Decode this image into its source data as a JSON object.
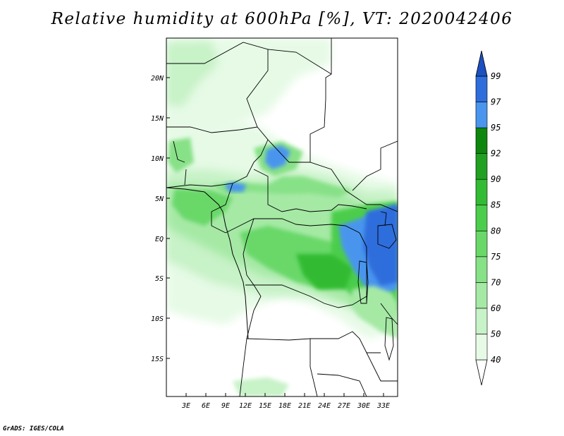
{
  "map": {
    "title": "Relative humidity at 600hPa [%], VT: 2020042406",
    "credit": "GrADS: IGES/COLA",
    "lat_ticks": [
      "20N",
      "15N",
      "10N",
      "5N",
      "EQ",
      "5S",
      "10S",
      "15S"
    ],
    "lon_ticks": [
      "3E",
      "6E",
      "9E",
      "12E",
      "15E",
      "18E",
      "21E",
      "24E",
      "27E",
      "30E",
      "33E"
    ]
  },
  "colorbar": {
    "levels": [
      "40",
      "50",
      "60",
      "70",
      "75",
      "80",
      "85",
      "90",
      "92",
      "95",
      "97",
      "99"
    ],
    "colors": [
      "#ffffff",
      "#e6fae6",
      "#c8f2c8",
      "#a5e9a5",
      "#87e187",
      "#69d869",
      "#4ccd4c",
      "#33bb33",
      "#22a022",
      "#0e870e",
      "#4a95ee",
      "#2e6ddc",
      "#1a50c0"
    ]
  }
}
